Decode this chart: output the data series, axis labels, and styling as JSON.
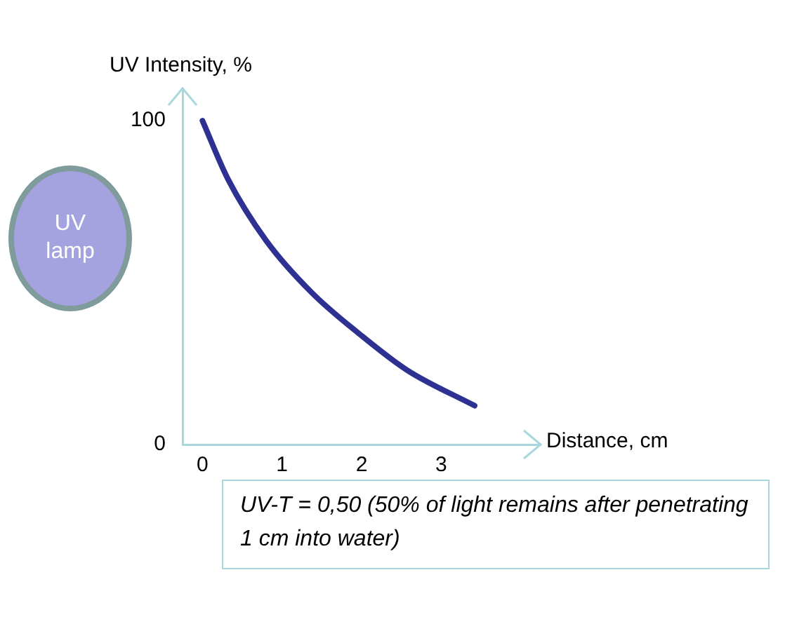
{
  "chart_data": {
    "type": "line",
    "xlabel": "Distance, cm",
    "ylabel": "UV Intensity, %",
    "x": [
      0,
      0.32,
      0.8,
      1.37,
      1.98,
      2.57,
      3.42
    ],
    "series": [
      {
        "color": "#2e3192",
        "values": [
          100,
          82,
          63,
          47,
          34,
          23,
          12
        ]
      }
    ],
    "xlim": [
      -0.25,
      4.25
    ],
    "ylim": [
      0,
      110
    ],
    "xticks": [
      0,
      1,
      2,
      3
    ],
    "yticks": [
      0,
      100
    ],
    "grid": false,
    "legend": false,
    "marker": "none",
    "line_style": "solid",
    "annotations": [
      "UV lamp",
      "UV-T = 0,50 (50% of light remains after penetrating 1 cm into water)"
    ]
  }
}
